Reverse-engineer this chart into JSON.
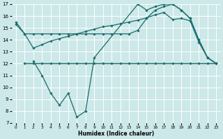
{
  "xlabel": "Humidex (Indice chaleur)",
  "bg_color": "#cce8e8",
  "grid_color": "#ffffff",
  "line_color": "#1a6b6b",
  "xlim": [
    -0.5,
    23.5
  ],
  "ylim": [
    7,
    17
  ],
  "yticks": [
    7,
    8,
    9,
    10,
    11,
    12,
    13,
    14,
    15,
    16,
    17
  ],
  "xticks": [
    0,
    1,
    2,
    3,
    4,
    5,
    6,
    7,
    8,
    9,
    10,
    11,
    12,
    13,
    14,
    15,
    16,
    17,
    18,
    19,
    20,
    21,
    22,
    23
  ],
  "line_flat_x": [
    1,
    2,
    3,
    4,
    5,
    6,
    7,
    8,
    9,
    10,
    11,
    12,
    13,
    14,
    15,
    16,
    17,
    18,
    19,
    20,
    21,
    22,
    23
  ],
  "line_flat_y": [
    12.0,
    12.0,
    12.0,
    12.0,
    12.0,
    12.0,
    12.0,
    12.0,
    12.0,
    12.0,
    12.0,
    12.0,
    12.0,
    12.0,
    12.0,
    12.0,
    12.0,
    12.0,
    12.0,
    12.0,
    12.0,
    12.0,
    12.0
  ],
  "line_top_x": [
    0,
    1,
    2,
    3,
    4,
    5,
    6,
    7,
    8,
    9,
    10,
    11,
    12,
    13,
    14,
    15,
    16,
    17,
    18,
    19,
    20,
    21,
    22,
    23
  ],
  "line_top_y": [
    15.5,
    14.5,
    14.5,
    14.5,
    14.5,
    14.5,
    14.5,
    14.5,
    14.5,
    14.5,
    14.5,
    14.5,
    14.5,
    14.5,
    14.8,
    15.8,
    16.5,
    16.8,
    17.0,
    16.5,
    15.8,
    14.0,
    12.5,
    12.0
  ],
  "line_mid_x": [
    0,
    1,
    2,
    3,
    4,
    5,
    6,
    7,
    8,
    9,
    10,
    11,
    12,
    13,
    14,
    15,
    16,
    17,
    18,
    19,
    20,
    21,
    22,
    23
  ],
  "line_mid_y": [
    15.3,
    14.5,
    13.3,
    13.6,
    13.9,
    14.1,
    14.3,
    14.5,
    14.7,
    14.9,
    15.1,
    15.2,
    15.35,
    15.5,
    15.65,
    15.85,
    16.1,
    16.3,
    15.7,
    15.8,
    15.6,
    13.8,
    12.5,
    12.0
  ],
  "line_dip_x": [
    2,
    3,
    4,
    5,
    6,
    7,
    8,
    9,
    14,
    15,
    16,
    17,
    18,
    19,
    20,
    21,
    22,
    23
  ],
  "line_dip_y": [
    12.2,
    11.0,
    9.5,
    8.5,
    9.5,
    7.5,
    8.0,
    12.5,
    17.0,
    16.5,
    16.8,
    17.0,
    17.0,
    16.5,
    15.8,
    14.0,
    12.5,
    12.0
  ]
}
